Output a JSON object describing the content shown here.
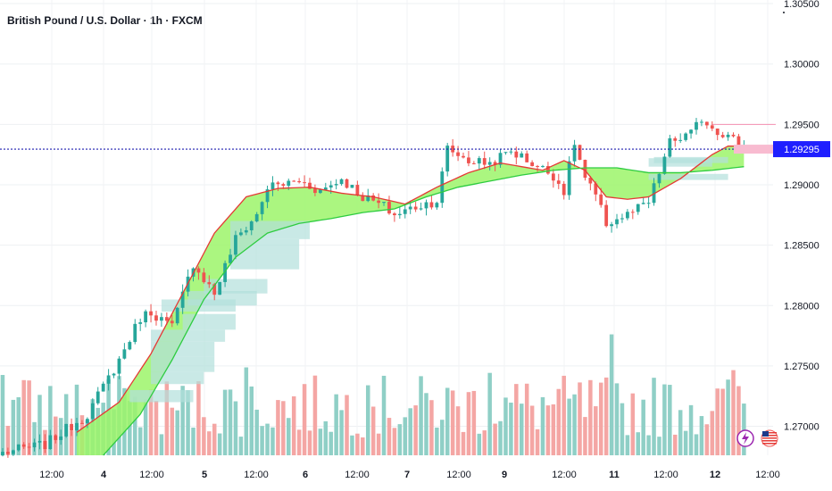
{
  "title": "British Pound / U.S. Dollar · 1h · FXCM",
  "colors": {
    "up": "#26a69a",
    "down": "#ef5350",
    "vol_up": "#8fcfc6",
    "vol_down": "#f4a6a4",
    "cloud": "#9cf56a",
    "fast_line": "#e53935",
    "slow_line": "#2ecc40",
    "zone": "#b2dfdb",
    "current_price_line": "#1f1fb0",
    "price_tag": "#1f1fff",
    "lightning": "#9c27b0"
  },
  "icons": [
    "lightning-icon",
    "us-flag-icon"
  ],
  "chart_data": {
    "type": "candlestick",
    "symbol": "British Pound / U.S. Dollar",
    "interval": "1h",
    "source": "FXCM",
    "current_price": "1.29295",
    "y_ticks": [
      "1.30500",
      "1.30000",
      "1.29500",
      "1.29000",
      "1.28500",
      "1.28000",
      "1.27500",
      "1.27000"
    ],
    "ylim": [
      1.2676,
      1.3053
    ],
    "x_ticks": [
      "12:00",
      "4",
      "12:00",
      "5",
      "12:00",
      "6",
      "12:00",
      "7",
      "12:00",
      "9",
      "12:00",
      "11",
      "12:00",
      "12",
      "12:00"
    ],
    "x_ticks_bold": [
      false,
      true,
      false,
      true,
      false,
      true,
      false,
      true,
      false,
      true,
      false,
      true,
      false,
      true,
      false
    ],
    "close_anchors": [
      [
        0,
        1.2678
      ],
      [
        8,
        1.2685
      ],
      [
        16,
        1.271
      ],
      [
        22,
        1.2755
      ],
      [
        26,
        1.279
      ],
      [
        28,
        1.2795
      ],
      [
        32,
        1.2782
      ],
      [
        36,
        1.2835
      ],
      [
        40,
        1.281
      ],
      [
        44,
        1.2855
      ],
      [
        48,
        1.2875
      ],
      [
        50,
        1.2898
      ],
      [
        56,
        1.2903
      ],
      [
        60,
        1.2895
      ],
      [
        64,
        1.2905
      ],
      [
        68,
        1.289
      ],
      [
        72,
        1.2882
      ],
      [
        74,
        1.2875
      ],
      [
        78,
        1.2882
      ],
      [
        82,
        1.2887
      ],
      [
        84,
        1.293
      ],
      [
        88,
        1.292
      ],
      [
        92,
        1.2918
      ],
      [
        96,
        1.2928
      ],
      [
        100,
        1.2918
      ],
      [
        104,
        1.2908
      ],
      [
        106,
        1.2895
      ],
      [
        108,
        1.2935
      ],
      [
        110,
        1.2905
      ],
      [
        112,
        1.289
      ],
      [
        114,
        1.2868
      ],
      [
        118,
        1.2875
      ],
      [
        122,
        1.2885
      ],
      [
        126,
        1.2935
      ],
      [
        130,
        1.2942
      ],
      [
        132,
        1.2955
      ],
      [
        134,
        1.2948
      ],
      [
        137,
        1.294
      ],
      [
        140,
        1.2932
      ]
    ],
    "fast_ma": [
      [
        14,
        1.2695
      ],
      [
        22,
        1.272
      ],
      [
        28,
        1.276
      ],
      [
        34,
        1.281
      ],
      [
        40,
        1.286
      ],
      [
        46,
        1.289
      ],
      [
        52,
        1.2897
      ],
      [
        58,
        1.2898
      ],
      [
        64,
        1.2893
      ],
      [
        70,
        1.289
      ],
      [
        76,
        1.2884
      ],
      [
        82,
        1.2898
      ],
      [
        88,
        1.291
      ],
      [
        94,
        1.2918
      ],
      [
        98,
        1.2915
      ],
      [
        102,
        1.2912
      ],
      [
        106,
        1.292
      ],
      [
        110,
        1.2912
      ],
      [
        114,
        1.289
      ],
      [
        118,
        1.2888
      ],
      [
        122,
        1.289
      ],
      [
        128,
        1.2905
      ],
      [
        134,
        1.2925
      ],
      [
        137,
        1.2932
      ],
      [
        140,
        1.2932
      ]
    ],
    "slow_ma": [
      [
        19,
        1.2676
      ],
      [
        26,
        1.271
      ],
      [
        32,
        1.2755
      ],
      [
        38,
        1.2805
      ],
      [
        44,
        1.284
      ],
      [
        50,
        1.286
      ],
      [
        56,
        1.2868
      ],
      [
        62,
        1.2872
      ],
      [
        68,
        1.2877
      ],
      [
        74,
        1.288
      ],
      [
        80,
        1.289
      ],
      [
        86,
        1.2898
      ],
      [
        92,
        1.2903
      ],
      [
        98,
        1.2908
      ],
      [
        104,
        1.2912
      ],
      [
        110,
        1.2914
      ],
      [
        116,
        1.2914
      ],
      [
        122,
        1.291
      ],
      [
        128,
        1.291
      ],
      [
        134,
        1.2912
      ],
      [
        140,
        1.2915
      ]
    ],
    "zones": [
      [
        43,
        58,
        1.2855,
        1.287
      ],
      [
        43,
        56,
        1.2842,
        1.2855
      ],
      [
        43,
        56,
        1.283,
        1.2842
      ],
      [
        38,
        50,
        1.281,
        1.2822
      ],
      [
        35,
        48,
        1.28,
        1.2812
      ],
      [
        30,
        44,
        1.2795,
        1.2805
      ],
      [
        34,
        44,
        1.278,
        1.2793
      ],
      [
        28,
        42,
        1.277,
        1.278
      ],
      [
        28,
        40,
        1.2758,
        1.277
      ],
      [
        28,
        40,
        1.2745,
        1.2758
      ],
      [
        28,
        38,
        1.2735,
        1.2745
      ],
      [
        24,
        36,
        1.272,
        1.273
      ],
      [
        122,
        134,
        1.2915,
        1.2922
      ],
      [
        122,
        137,
        1.2904,
        1.2909
      ],
      [
        123,
        137,
        1.2918,
        1.2923
      ]
    ],
    "resistance_line": [
      134,
      146,
      1.295
    ],
    "bars": 141
  }
}
